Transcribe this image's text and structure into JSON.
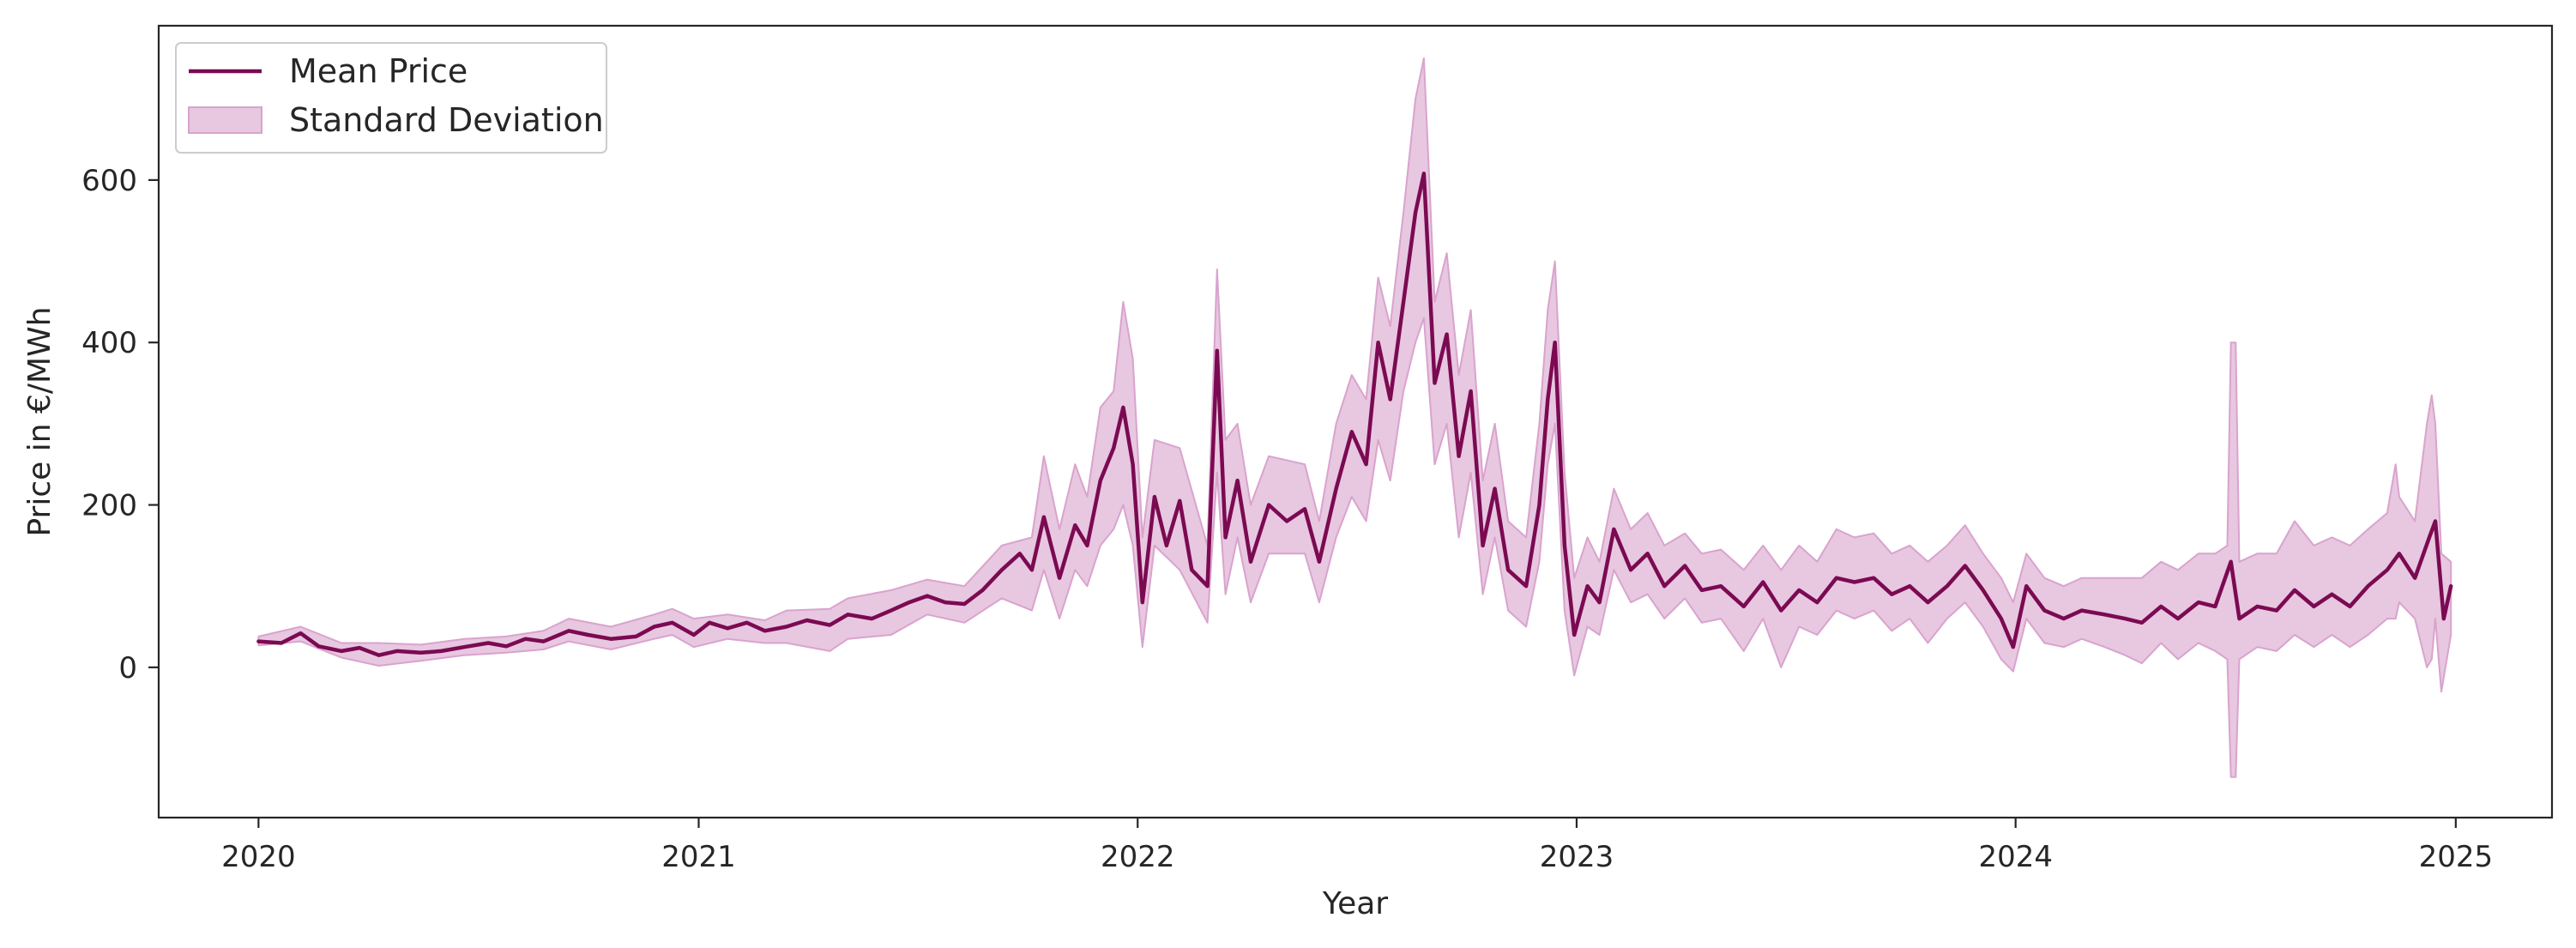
{
  "chart_data": {
    "type": "line",
    "xlabel": "Year",
    "ylabel": "Price in €/MWh",
    "x_ticks": [
      "2020",
      "2021",
      "2022",
      "2023",
      "2024",
      "2025"
    ],
    "y_ticks": [
      0,
      200,
      400,
      600
    ],
    "xlim": [
      "2019-10-10",
      "2025-03-22"
    ],
    "ylim": [
      -185,
      790
    ],
    "grid": false,
    "legend_position": "top-left",
    "colors": {
      "mean_line": "#7b0a52",
      "band_fill": "#e8c7e1",
      "band_edge": "#d9a3cd",
      "axis": "#262626"
    },
    "series": [
      {
        "name": "Mean Price",
        "kind": "line",
        "points": [
          [
            "2020-01-01",
            32
          ],
          [
            "2020-01-20",
            30
          ],
          [
            "2020-02-05",
            42
          ],
          [
            "2020-02-20",
            26
          ],
          [
            "2020-03-10",
            20
          ],
          [
            "2020-03-25",
            24
          ],
          [
            "2020-04-10",
            15
          ],
          [
            "2020-04-25",
            20
          ],
          [
            "2020-05-15",
            18
          ],
          [
            "2020-06-01",
            20
          ],
          [
            "2020-06-20",
            25
          ],
          [
            "2020-07-10",
            30
          ],
          [
            "2020-07-25",
            26
          ],
          [
            "2020-08-10",
            35
          ],
          [
            "2020-08-25",
            32
          ],
          [
            "2020-09-15",
            45
          ],
          [
            "2020-10-01",
            40
          ],
          [
            "2020-10-20",
            35
          ],
          [
            "2020-11-10",
            38
          ],
          [
            "2020-11-25",
            50
          ],
          [
            "2020-12-10",
            55
          ],
          [
            "2020-12-28",
            40
          ],
          [
            "2021-01-10",
            55
          ],
          [
            "2021-01-25",
            48
          ],
          [
            "2021-02-10",
            55
          ],
          [
            "2021-02-25",
            45
          ],
          [
            "2021-03-15",
            50
          ],
          [
            "2021-04-01",
            58
          ],
          [
            "2021-04-20",
            52
          ],
          [
            "2021-05-05",
            65
          ],
          [
            "2021-05-25",
            60
          ],
          [
            "2021-06-10",
            70
          ],
          [
            "2021-06-25",
            80
          ],
          [
            "2021-07-10",
            88
          ],
          [
            "2021-07-25",
            80
          ],
          [
            "2021-08-10",
            78
          ],
          [
            "2021-08-25",
            95
          ],
          [
            "2021-09-10",
            120
          ],
          [
            "2021-09-25",
            140
          ],
          [
            "2021-10-05",
            120
          ],
          [
            "2021-10-15",
            185
          ],
          [
            "2021-10-28",
            110
          ],
          [
            "2021-11-10",
            175
          ],
          [
            "2021-11-20",
            150
          ],
          [
            "2021-12-01",
            230
          ],
          [
            "2021-12-12",
            270
          ],
          [
            "2021-12-20",
            320
          ],
          [
            "2021-12-28",
            250
          ],
          [
            "2022-01-05",
            80
          ],
          [
            "2022-01-15",
            210
          ],
          [
            "2022-01-25",
            150
          ],
          [
            "2022-02-05",
            205
          ],
          [
            "2022-02-15",
            120
          ],
          [
            "2022-02-28",
            100
          ],
          [
            "2022-03-08",
            390
          ],
          [
            "2022-03-15",
            160
          ],
          [
            "2022-03-25",
            230
          ],
          [
            "2022-04-05",
            130
          ],
          [
            "2022-04-20",
            200
          ],
          [
            "2022-05-05",
            180
          ],
          [
            "2022-05-20",
            195
          ],
          [
            "2022-06-01",
            130
          ],
          [
            "2022-06-15",
            220
          ],
          [
            "2022-06-28",
            290
          ],
          [
            "2022-07-10",
            250
          ],
          [
            "2022-07-20",
            400
          ],
          [
            "2022-07-30",
            330
          ],
          [
            "2022-08-10",
            450
          ],
          [
            "2022-08-20",
            560
          ],
          [
            "2022-08-27",
            608
          ],
          [
            "2022-09-05",
            350
          ],
          [
            "2022-09-15",
            410
          ],
          [
            "2022-09-25",
            260
          ],
          [
            "2022-10-05",
            340
          ],
          [
            "2022-10-15",
            150
          ],
          [
            "2022-10-25",
            220
          ],
          [
            "2022-11-05",
            120
          ],
          [
            "2022-11-20",
            100
          ],
          [
            "2022-12-01",
            200
          ],
          [
            "2022-12-08",
            330
          ],
          [
            "2022-12-14",
            400
          ],
          [
            "2022-12-22",
            150
          ],
          [
            "2022-12-30",
            40
          ],
          [
            "2023-01-10",
            100
          ],
          [
            "2023-01-20",
            80
          ],
          [
            "2023-02-01",
            170
          ],
          [
            "2023-02-15",
            120
          ],
          [
            "2023-03-01",
            140
          ],
          [
            "2023-03-15",
            100
          ],
          [
            "2023-04-01",
            125
          ],
          [
            "2023-04-15",
            95
          ],
          [
            "2023-05-01",
            100
          ],
          [
            "2023-05-20",
            75
          ],
          [
            "2023-06-05",
            105
          ],
          [
            "2023-06-20",
            70
          ],
          [
            "2023-07-05",
            95
          ],
          [
            "2023-07-20",
            80
          ],
          [
            "2023-08-05",
            110
          ],
          [
            "2023-08-20",
            105
          ],
          [
            "2023-09-05",
            110
          ],
          [
            "2023-09-20",
            90
          ],
          [
            "2023-10-05",
            100
          ],
          [
            "2023-10-20",
            80
          ],
          [
            "2023-11-05",
            100
          ],
          [
            "2023-11-20",
            125
          ],
          [
            "2023-12-05",
            95
          ],
          [
            "2023-12-20",
            60
          ],
          [
            "2023-12-30",
            25
          ],
          [
            "2024-01-10",
            100
          ],
          [
            "2024-01-25",
            70
          ],
          [
            "2024-02-10",
            60
          ],
          [
            "2024-02-25",
            70
          ],
          [
            "2024-03-15",
            65
          ],
          [
            "2024-04-01",
            60
          ],
          [
            "2024-04-15",
            55
          ],
          [
            "2024-05-01",
            75
          ],
          [
            "2024-05-15",
            60
          ],
          [
            "2024-06-01",
            80
          ],
          [
            "2024-06-15",
            75
          ],
          [
            "2024-06-28",
            130
          ],
          [
            "2024-07-05",
            60
          ],
          [
            "2024-07-20",
            75
          ],
          [
            "2024-08-05",
            70
          ],
          [
            "2024-08-20",
            95
          ],
          [
            "2024-09-05",
            75
          ],
          [
            "2024-09-20",
            90
          ],
          [
            "2024-10-05",
            75
          ],
          [
            "2024-10-20",
            100
          ],
          [
            "2024-11-05",
            120
          ],
          [
            "2024-11-15",
            140
          ],
          [
            "2024-11-28",
            110
          ],
          [
            "2024-12-10",
            160
          ],
          [
            "2024-12-15",
            180
          ],
          [
            "2024-12-22",
            60
          ],
          [
            "2024-12-28",
            100
          ]
        ]
      },
      {
        "name": "Standard Deviation",
        "kind": "band",
        "points": [
          [
            "2020-01-01",
            27,
            38
          ],
          [
            "2020-02-05",
            32,
            50
          ],
          [
            "2020-03-10",
            12,
            30
          ],
          [
            "2020-04-10",
            2,
            30
          ],
          [
            "2020-05-15",
            8,
            28
          ],
          [
            "2020-06-20",
            15,
            35
          ],
          [
            "2020-07-25",
            18,
            38
          ],
          [
            "2020-08-25",
            22,
            45
          ],
          [
            "2020-09-15",
            32,
            60
          ],
          [
            "2020-10-20",
            22,
            50
          ],
          [
            "2020-11-25",
            35,
            65
          ],
          [
            "2020-12-10",
            40,
            72
          ],
          [
            "2020-12-28",
            25,
            60
          ],
          [
            "2021-01-25",
            35,
            65
          ],
          [
            "2021-02-25",
            30,
            58
          ],
          [
            "2021-03-15",
            30,
            70
          ],
          [
            "2021-04-20",
            20,
            72
          ],
          [
            "2021-05-05",
            35,
            85
          ],
          [
            "2021-06-10",
            40,
            95
          ],
          [
            "2021-07-10",
            65,
            108
          ],
          [
            "2021-08-10",
            55,
            100
          ],
          [
            "2021-09-10",
            85,
            150
          ],
          [
            "2021-10-05",
            70,
            160
          ],
          [
            "2021-10-15",
            120,
            260
          ],
          [
            "2021-10-28",
            60,
            170
          ],
          [
            "2021-11-10",
            120,
            250
          ],
          [
            "2021-11-20",
            100,
            210
          ],
          [
            "2021-12-01",
            150,
            320
          ],
          [
            "2021-12-12",
            170,
            340
          ],
          [
            "2021-12-20",
            200,
            450
          ],
          [
            "2021-12-28",
            150,
            380
          ],
          [
            "2022-01-05",
            25,
            160
          ],
          [
            "2022-01-15",
            150,
            280
          ],
          [
            "2022-02-05",
            120,
            270
          ],
          [
            "2022-02-28",
            55,
            150
          ],
          [
            "2022-03-08",
            240,
            490
          ],
          [
            "2022-03-15",
            90,
            280
          ],
          [
            "2022-03-25",
            160,
            300
          ],
          [
            "2022-04-05",
            80,
            200
          ],
          [
            "2022-04-20",
            140,
            260
          ],
          [
            "2022-05-20",
            140,
            250
          ],
          [
            "2022-06-01",
            80,
            180
          ],
          [
            "2022-06-15",
            160,
            300
          ],
          [
            "2022-06-28",
            210,
            360
          ],
          [
            "2022-07-10",
            180,
            330
          ],
          [
            "2022-07-20",
            280,
            480
          ],
          [
            "2022-07-30",
            230,
            420
          ],
          [
            "2022-08-10",
            340,
            560
          ],
          [
            "2022-08-20",
            400,
            700
          ],
          [
            "2022-08-27",
            430,
            750
          ],
          [
            "2022-09-05",
            250,
            450
          ],
          [
            "2022-09-15",
            300,
            510
          ],
          [
            "2022-09-25",
            160,
            360
          ],
          [
            "2022-10-05",
            240,
            440
          ],
          [
            "2022-10-15",
            90,
            230
          ],
          [
            "2022-10-25",
            160,
            300
          ],
          [
            "2022-11-05",
            70,
            180
          ],
          [
            "2022-11-20",
            50,
            160
          ],
          [
            "2022-12-01",
            130,
            300
          ],
          [
            "2022-12-08",
            250,
            440
          ],
          [
            "2022-12-14",
            300,
            500
          ],
          [
            "2022-12-22",
            70,
            240
          ],
          [
            "2022-12-30",
            -10,
            110
          ],
          [
            "2023-01-10",
            50,
            160
          ],
          [
            "2023-01-20",
            40,
            130
          ],
          [
            "2023-02-01",
            120,
            220
          ],
          [
            "2023-02-15",
            80,
            170
          ],
          [
            "2023-03-01",
            90,
            190
          ],
          [
            "2023-03-15",
            60,
            150
          ],
          [
            "2023-04-01",
            85,
            165
          ],
          [
            "2023-04-15",
            55,
            140
          ],
          [
            "2023-05-01",
            60,
            145
          ],
          [
            "2023-05-20",
            20,
            120
          ],
          [
            "2023-06-05",
            60,
            150
          ],
          [
            "2023-06-20",
            0,
            120
          ],
          [
            "2023-07-05",
            50,
            150
          ],
          [
            "2023-07-20",
            40,
            130
          ],
          [
            "2023-08-05",
            70,
            170
          ],
          [
            "2023-08-20",
            60,
            160
          ],
          [
            "2023-09-05",
            70,
            165
          ],
          [
            "2023-09-20",
            45,
            140
          ],
          [
            "2023-10-05",
            60,
            150
          ],
          [
            "2023-10-20",
            30,
            130
          ],
          [
            "2023-11-05",
            60,
            150
          ],
          [
            "2023-11-20",
            80,
            175
          ],
          [
            "2023-12-05",
            50,
            140
          ],
          [
            "2023-12-20",
            10,
            110
          ],
          [
            "2023-12-30",
            -5,
            80
          ],
          [
            "2024-01-10",
            60,
            140
          ],
          [
            "2024-01-25",
            30,
            110
          ],
          [
            "2024-02-10",
            25,
            100
          ],
          [
            "2024-02-25",
            35,
            110
          ],
          [
            "2024-03-15",
            25,
            110
          ],
          [
            "2024-04-01",
            15,
            110
          ],
          [
            "2024-04-15",
            5,
            110
          ],
          [
            "2024-05-01",
            30,
            130
          ],
          [
            "2024-05-15",
            10,
            120
          ],
          [
            "2024-06-01",
            30,
            140
          ],
          [
            "2024-06-15",
            20,
            140
          ],
          [
            "2024-06-25",
            10,
            150
          ],
          [
            "2024-06-28",
            -135,
            400
          ],
          [
            "2024-07-02",
            -135,
            400
          ],
          [
            "2024-07-05",
            10,
            130
          ],
          [
            "2024-07-20",
            25,
            140
          ],
          [
            "2024-08-05",
            20,
            140
          ],
          [
            "2024-08-20",
            40,
            180
          ],
          [
            "2024-09-05",
            25,
            150
          ],
          [
            "2024-09-20",
            40,
            160
          ],
          [
            "2024-10-05",
            25,
            150
          ],
          [
            "2024-10-20",
            40,
            170
          ],
          [
            "2024-11-05",
            60,
            190
          ],
          [
            "2024-11-12",
            60,
            250
          ],
          [
            "2024-11-15",
            80,
            210
          ],
          [
            "2024-11-28",
            60,
            180
          ],
          [
            "2024-12-08",
            0,
            300
          ],
          [
            "2024-12-12",
            10,
            335
          ],
          [
            "2024-12-15",
            60,
            300
          ],
          [
            "2024-12-20",
            -30,
            140
          ],
          [
            "2024-12-28",
            40,
            130
          ]
        ]
      }
    ]
  }
}
